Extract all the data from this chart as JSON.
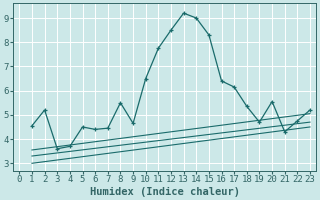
{
  "title": "",
  "xlabel": "Humidex (Indice chaleur)",
  "bg_color": "#cce8e8",
  "line_color": "#1a6b6b",
  "grid_color": "#ffffff",
  "xlim": [
    -0.5,
    23.5
  ],
  "ylim": [
    2.7,
    9.6
  ],
  "xticks": [
    0,
    1,
    2,
    3,
    4,
    5,
    6,
    7,
    8,
    9,
    10,
    11,
    12,
    13,
    14,
    15,
    16,
    17,
    18,
    19,
    20,
    21,
    22,
    23
  ],
  "yticks": [
    3,
    4,
    5,
    6,
    7,
    8,
    9
  ],
  "main_line_x": [
    1,
    2,
    3,
    4,
    5,
    6,
    7,
    8,
    9,
    10,
    11,
    12,
    13,
    14,
    15,
    16,
    17,
    18,
    19,
    20,
    21,
    22,
    23
  ],
  "main_line_y": [
    4.55,
    5.2,
    3.6,
    3.7,
    4.5,
    4.4,
    4.45,
    5.5,
    4.65,
    6.5,
    7.75,
    8.5,
    9.2,
    9.0,
    8.3,
    6.4,
    6.15,
    5.35,
    4.7,
    5.55,
    4.3,
    4.75,
    5.2
  ],
  "line2_x": [
    1,
    23
  ],
  "line2_y": [
    3.0,
    4.5
  ],
  "line3_x": [
    1,
    23
  ],
  "line3_y": [
    3.3,
    4.7
  ],
  "line4_x": [
    1,
    23
  ],
  "line4_y": [
    3.55,
    5.05
  ],
  "spine_color": "#336666",
  "tick_fontsize": 6.5,
  "xlabel_fontsize": 7.5
}
